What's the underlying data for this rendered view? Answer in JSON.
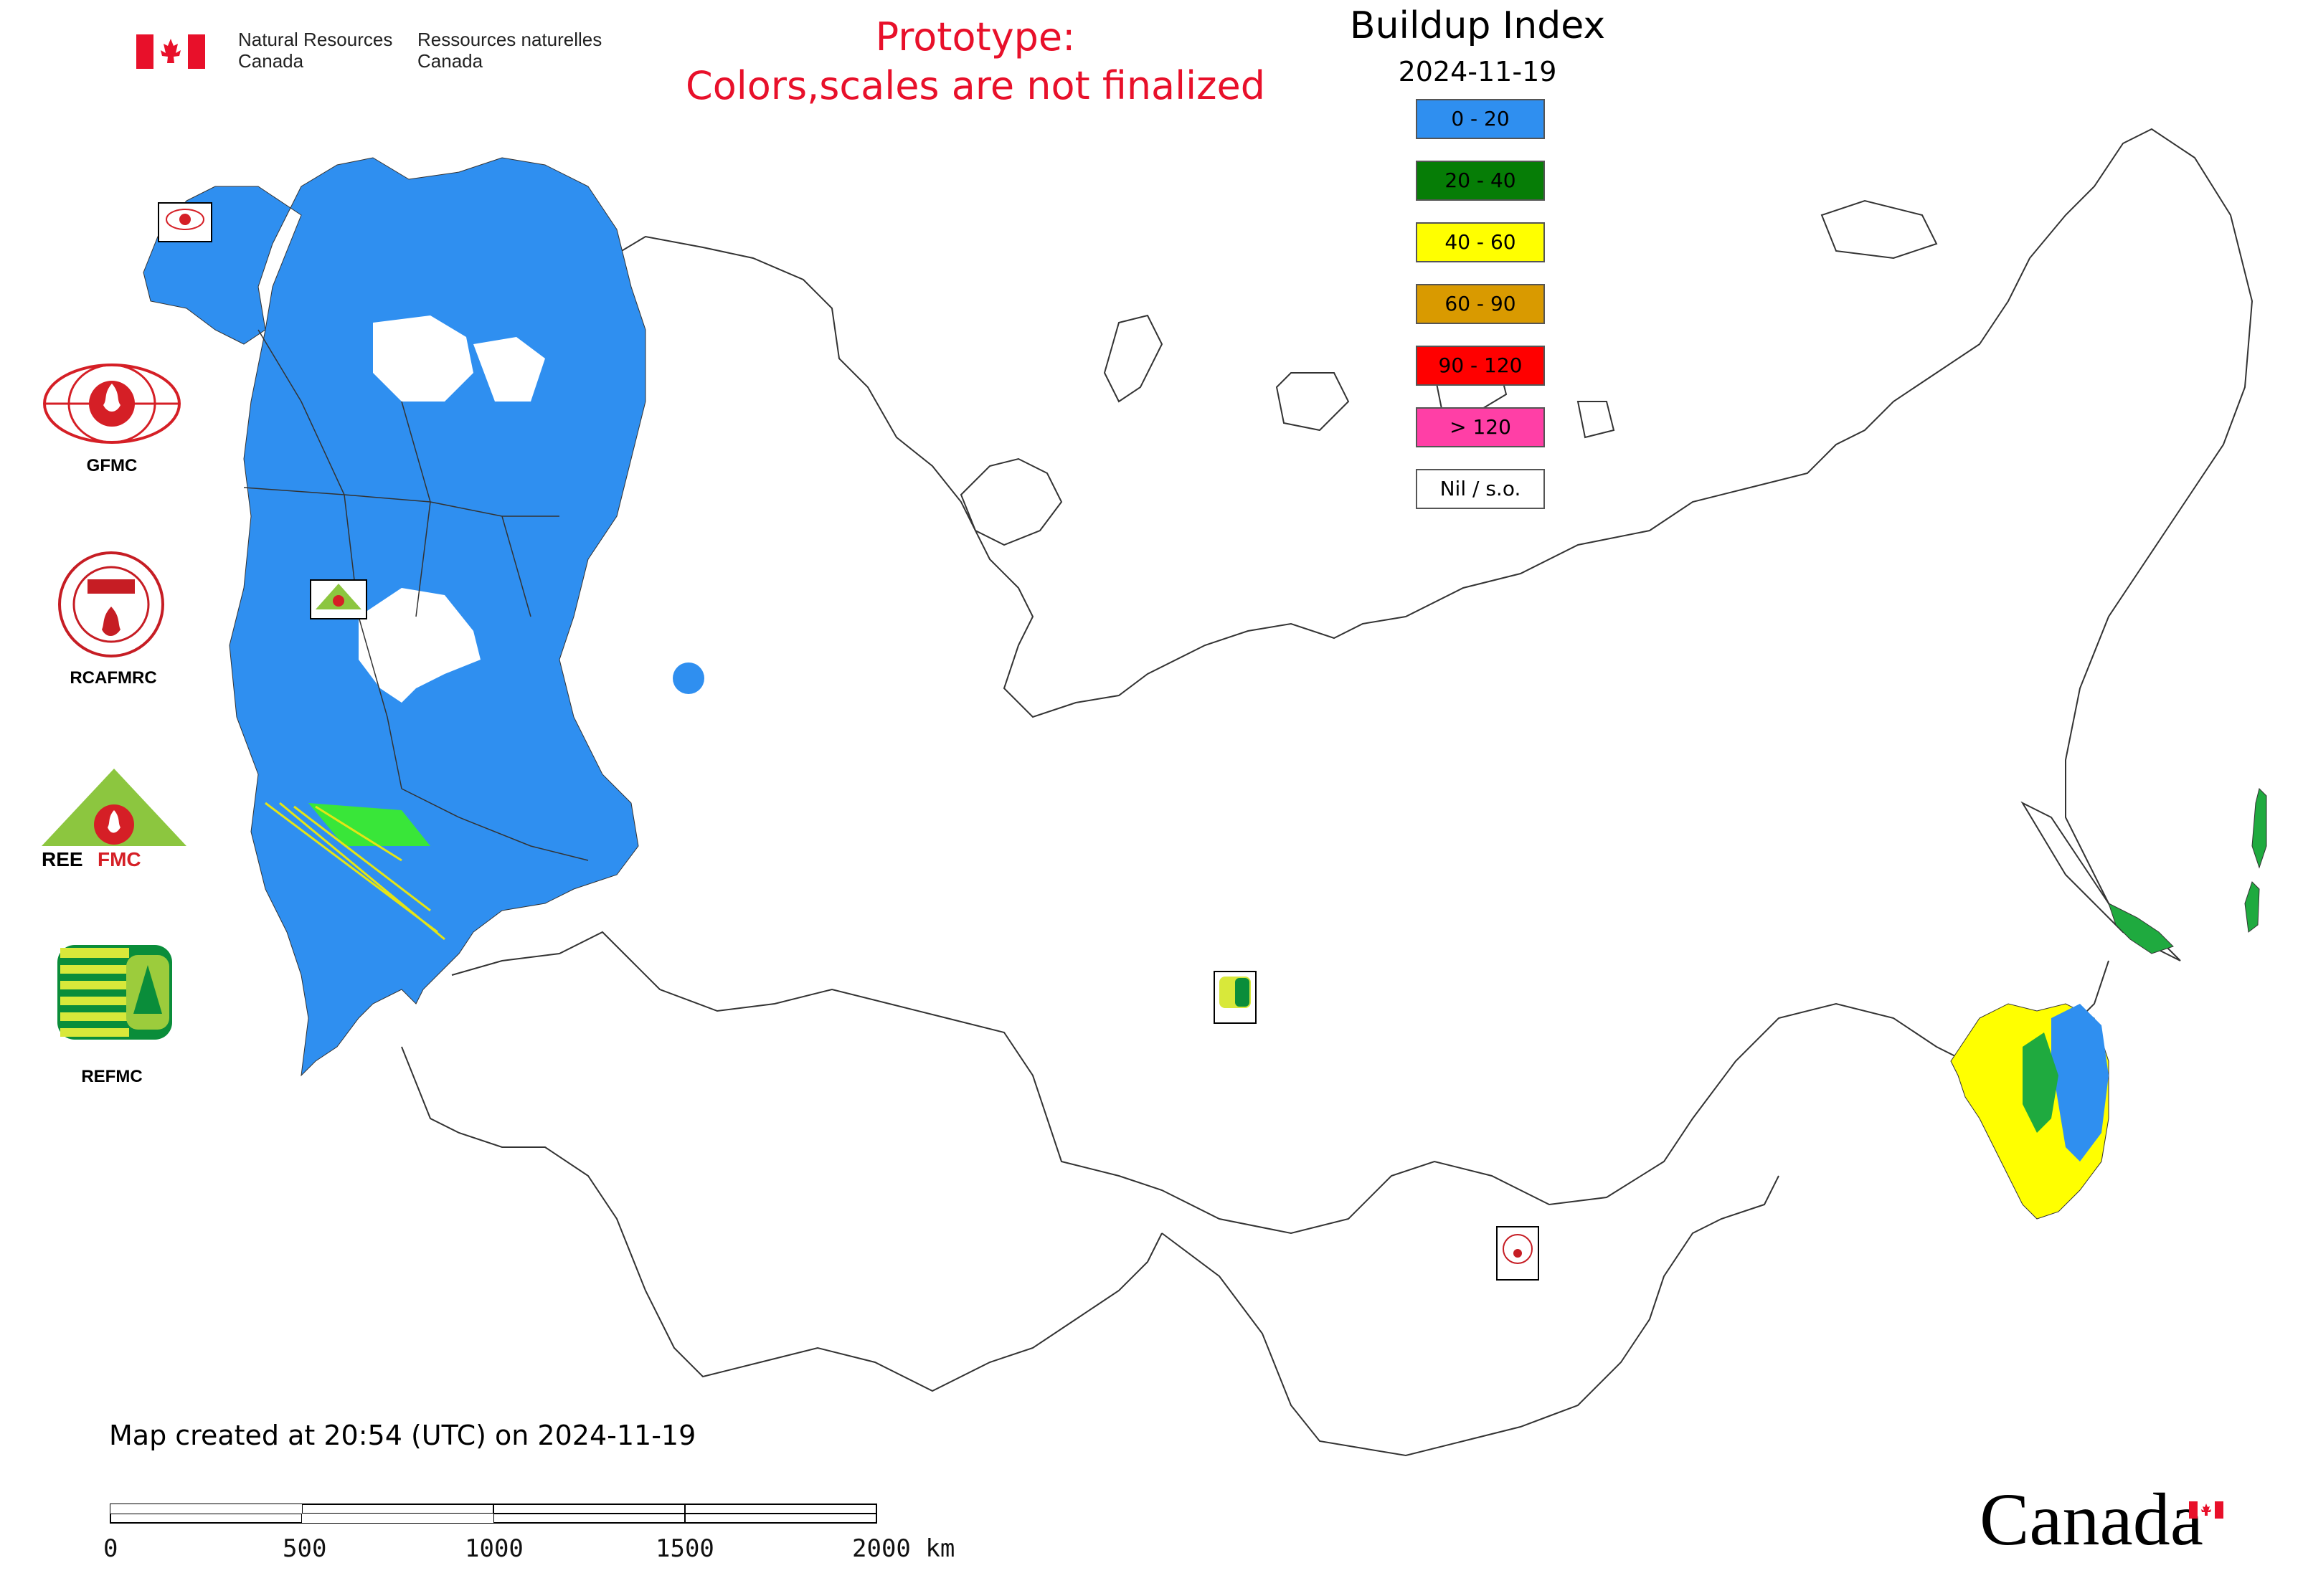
{
  "header": {
    "agency_en_line1": "Natural Resources",
    "agency_en_line2": "Canada",
    "agency_fr_line1": "Ressources naturelles",
    "agency_fr_line2": "Canada",
    "prototype_line1": "Prototype:",
    "prototype_line2": "Colors,scales are not finalized"
  },
  "map": {
    "title": "Buildup Index",
    "date": "2024-11-19",
    "legend": [
      {
        "label": "0 - 20",
        "color": "#2f8ff0"
      },
      {
        "label": "20 - 40",
        "color": "#067d06"
      },
      {
        "label": "40 - 60",
        "color": "#ffff00"
      },
      {
        "label": "60 - 90",
        "color": "#d99a00"
      },
      {
        "label": "90 - 120",
        "color": "#ff0000"
      },
      {
        "label": "> 120",
        "color": "#ff3fa6"
      },
      {
        "label": "Nil / s.o.",
        "color": "#ffffff"
      }
    ],
    "created": "Map created at 20:54 (UTC) on 2024-11-19",
    "scale_labels": [
      "0",
      "500",
      "1000",
      "1500",
      "2000 km"
    ]
  },
  "orgs": [
    {
      "label": "GFMC"
    },
    {
      "label": "RCAFMRC"
    },
    {
      "label": "REEFMC"
    },
    {
      "label": "REFMC"
    }
  ],
  "wordmark": "Canada",
  "colors": {
    "prototype": "#e8102a",
    "flag_red": "#e8102a",
    "border": "#333333"
  }
}
